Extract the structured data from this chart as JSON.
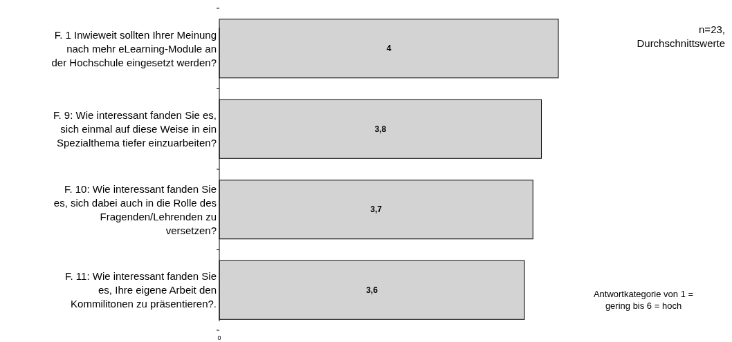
{
  "chart_data": {
    "type": "bar",
    "orientation": "horizontal",
    "categories": [
      "F. 1 Inwieweit sollten Ihrer Meinung nach mehr eLearning-Module an der Hochschule eingesetzt werden?",
      "F. 9: Wie interessant fanden Sie es, sich einmal auf diese Weise in ein Spezialthema tiefer einzuarbeiten?",
      "F. 10: Wie interessant fanden Sie es, sich dabei auch in die Rolle des Fragenden/Lehrenden zu versetzen?",
      "F. 11: Wie interessant fanden Sie es, Ihre eigene Arbeit den Kommilitonen zu präsentieren?."
    ],
    "values": [
      4,
      3.8,
      3.7,
      3.6
    ],
    "value_labels": [
      "4",
      "3,8",
      "3,7",
      "3,6"
    ],
    "color": "#d3d3d3",
    "annotations": [
      "n=23, Durchschnittswerte",
      "Antwortkategorie von 1 = gering bis 6 = hoch",
      "0"
    ]
  }
}
